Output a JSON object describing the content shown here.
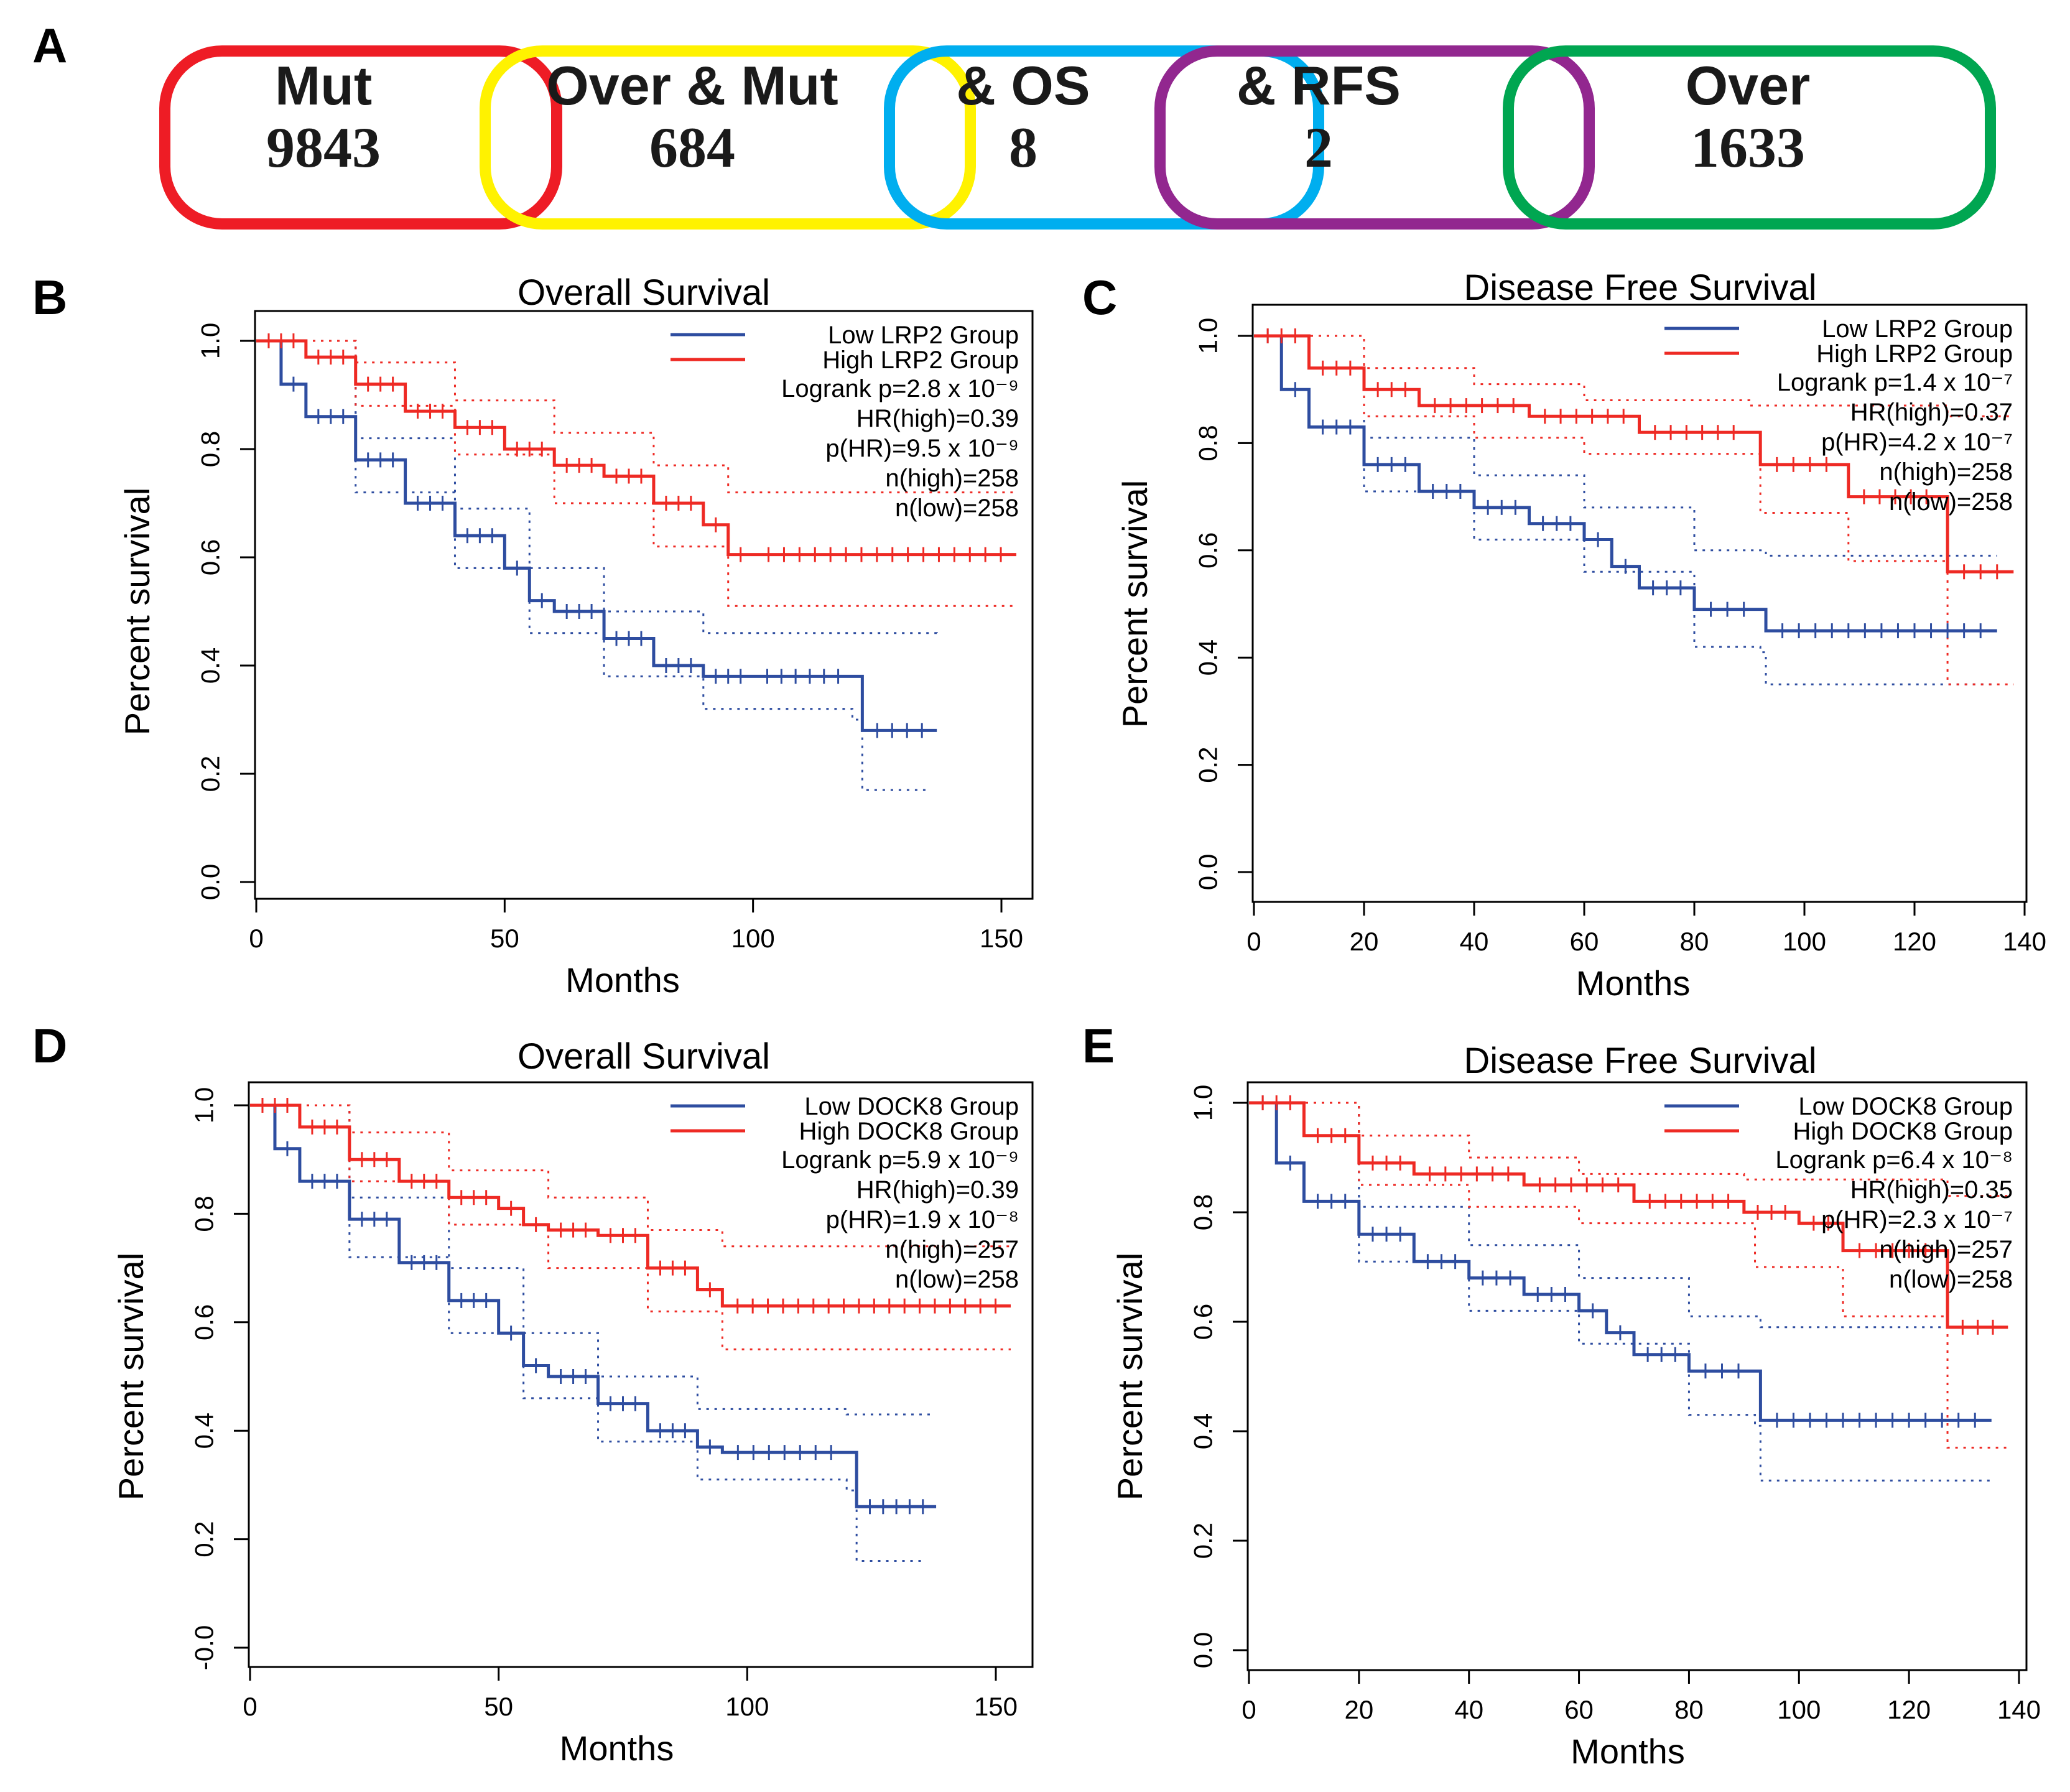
{
  "panel_a": {
    "label": "A",
    "sets": [
      {
        "title": "Mut",
        "count": "9843",
        "color": "#ee1c25"
      },
      {
        "title": "Over & Mut",
        "count": "684",
        "color": "#fff200"
      },
      {
        "title": "& OS",
        "count": "8",
        "color": "#00aeef"
      },
      {
        "title": "& RFS",
        "count": "2",
        "color": "#92278f"
      },
      {
        "title": "Over",
        "count": "1633",
        "color": "#00a651"
      }
    ]
  },
  "colors": {
    "low": "#2e4da0",
    "high": "#ee2a24"
  },
  "chart_data": [
    {
      "panel": "B",
      "type": "line",
      "title": "Overall Survival",
      "xlabel": "Months",
      "ylabel": "Percent survival",
      "xlim": [
        0,
        155
      ],
      "ylim": [
        0,
        1
      ],
      "xticks": [
        0,
        50,
        100,
        150
      ],
      "yticks": [
        "0.0",
        "0.2",
        "0.4",
        "0.6",
        "0.8",
        "1.0"
      ],
      "legend": [
        "Low LRP2 Group",
        "High LRP2 Group"
      ],
      "stats": [
        "Logrank p=2.8 x 10⁻⁹",
        "HR(high)=0.39",
        "p(HR)=9.5 x 10⁻⁹",
        "n(high)=258",
        "n(low)=258"
      ],
      "series": [
        {
          "name": "Low LRP2 Group",
          "x": [
            0,
            5,
            10,
            20,
            30,
            40,
            50,
            55,
            60,
            70,
            80,
            90,
            100,
            120,
            122,
            137
          ],
          "y": [
            1.0,
            0.92,
            0.86,
            0.78,
            0.7,
            0.64,
            0.58,
            0.52,
            0.5,
            0.45,
            0.4,
            0.38,
            0.38,
            0.38,
            0.28,
            0.28
          ]
        },
        {
          "name": "High LRP2 Group",
          "x": [
            0,
            10,
            20,
            30,
            40,
            50,
            60,
            70,
            80,
            90,
            95,
            100,
            153
          ],
          "y": [
            1.0,
            0.97,
            0.92,
            0.87,
            0.84,
            0.8,
            0.77,
            0.75,
            0.7,
            0.66,
            0.605,
            0.605,
            0.605
          ]
        }
      ],
      "ci": [
        {
          "of": "Low LRP2 Group",
          "upper_x": [
            0,
            20,
            40,
            55,
            70,
            90,
            120,
            137
          ],
          "upper_y": [
            1.0,
            0.82,
            0.69,
            0.58,
            0.5,
            0.46,
            0.46,
            0.45
          ],
          "lower_x": [
            0,
            20,
            40,
            55,
            70,
            90,
            120,
            122,
            135
          ],
          "lower_y": [
            1.0,
            0.72,
            0.58,
            0.46,
            0.38,
            0.32,
            0.3,
            0.17,
            0.17
          ]
        },
        {
          "of": "High LRP2 Group",
          "upper_x": [
            0,
            20,
            40,
            60,
            80,
            95,
            153
          ],
          "upper_y": [
            1.0,
            0.96,
            0.89,
            0.83,
            0.77,
            0.72,
            0.72
          ],
          "lower_x": [
            0,
            20,
            40,
            60,
            80,
            95,
            153
          ],
          "lower_y": [
            1.0,
            0.88,
            0.79,
            0.7,
            0.62,
            0.51,
            0.51
          ]
        }
      ]
    },
    {
      "panel": "C",
      "type": "line",
      "title": "Disease Free Survival",
      "xlabel": "Months",
      "ylabel": "Percent survival",
      "xlim": [
        0,
        140
      ],
      "ylim": [
        0,
        1
      ],
      "xticks": [
        0,
        20,
        40,
        60,
        80,
        100,
        120,
        140
      ],
      "yticks": [
        "0.0",
        "0.2",
        "0.4",
        "0.6",
        "0.8",
        "1.0"
      ],
      "legend": [
        "Low LRP2 Group",
        "High LRP2 Group"
      ],
      "stats": [
        "Logrank p=1.4 x 10⁻⁷",
        "HR(high)=0.37",
        "p(HR)=4.2 x 10⁻⁷",
        "n(high)=258",
        "n(low)=258"
      ],
      "series": [
        {
          "name": "Low LRP2 Group",
          "x": [
            0,
            5,
            10,
            20,
            30,
            40,
            50,
            60,
            65,
            70,
            80,
            92,
            93,
            135
          ],
          "y": [
            1.0,
            0.9,
            0.83,
            0.76,
            0.71,
            0.68,
            0.65,
            0.62,
            0.57,
            0.53,
            0.49,
            0.49,
            0.45,
            0.45
          ]
        },
        {
          "name": "High LRP2 Group",
          "x": [
            0,
            10,
            20,
            30,
            50,
            70,
            90,
            92,
            107,
            108,
            125,
            126,
            138
          ],
          "y": [
            1.0,
            0.94,
            0.9,
            0.87,
            0.85,
            0.82,
            0.82,
            0.76,
            0.76,
            0.7,
            0.7,
            0.56,
            0.56
          ]
        }
      ],
      "ci": [
        {
          "of": "Low LRP2 Group",
          "upper_x": [
            0,
            20,
            40,
            60,
            80,
            93,
            135
          ],
          "upper_y": [
            1.0,
            0.81,
            0.74,
            0.68,
            0.6,
            0.59,
            0.59
          ],
          "lower_x": [
            0,
            20,
            40,
            60,
            80,
            92,
            93,
            135
          ],
          "lower_y": [
            1.0,
            0.71,
            0.62,
            0.56,
            0.42,
            0.41,
            0.35,
            0.35
          ]
        },
        {
          "of": "High LRP2 Group",
          "upper_x": [
            0,
            20,
            40,
            60,
            90,
            126,
            138
          ],
          "upper_y": [
            1.0,
            0.94,
            0.91,
            0.88,
            0.87,
            0.85,
            0.85
          ],
          "lower_x": [
            0,
            20,
            40,
            60,
            92,
            108,
            126,
            138
          ],
          "lower_y": [
            1.0,
            0.85,
            0.81,
            0.78,
            0.67,
            0.58,
            0.35,
            0.35
          ]
        }
      ]
    },
    {
      "panel": "D",
      "type": "line",
      "title": "Overall Survival",
      "xlabel": "Months",
      "ylabel": "Percent survival",
      "xlim": [
        0,
        155
      ],
      "ylim": [
        0,
        1
      ],
      "xticks": [
        0,
        50,
        100,
        150
      ],
      "yticks": [
        "-0.0",
        "0.2",
        "0.4",
        "0.6",
        "0.8",
        "1.0"
      ],
      "legend": [
        "Low DOCK8 Group",
        "High DOCK8 Group"
      ],
      "stats": [
        "Logrank p=5.9 x 10⁻⁹",
        "HR(high)=0.39",
        "p(HR)=1.9 x 10⁻⁸",
        "n(high)=257",
        "n(low)=258"
      ],
      "series": [
        {
          "name": "Low DOCK8 Group",
          "x": [
            0,
            5,
            10,
            20,
            30,
            40,
            50,
            55,
            60,
            70,
            80,
            90,
            95,
            120,
            122,
            138
          ],
          "y": [
            1.0,
            0.92,
            0.86,
            0.79,
            0.71,
            0.64,
            0.58,
            0.52,
            0.5,
            0.45,
            0.4,
            0.37,
            0.36,
            0.36,
            0.26,
            0.26
          ]
        },
        {
          "name": "High DOCK8 Group",
          "x": [
            0,
            10,
            20,
            30,
            40,
            50,
            55,
            60,
            70,
            80,
            90,
            95,
            153
          ],
          "y": [
            1.0,
            0.96,
            0.9,
            0.86,
            0.83,
            0.81,
            0.78,
            0.77,
            0.76,
            0.7,
            0.66,
            0.63,
            0.63
          ]
        }
      ],
      "ci": [
        {
          "of": "Low DOCK8 Group",
          "upper_x": [
            0,
            20,
            40,
            55,
            70,
            90,
            120,
            137
          ],
          "upper_y": [
            1.0,
            0.83,
            0.7,
            0.58,
            0.5,
            0.44,
            0.43,
            0.43
          ],
          "lower_x": [
            0,
            20,
            40,
            55,
            70,
            90,
            120,
            122,
            136
          ],
          "lower_y": [
            1.0,
            0.72,
            0.58,
            0.46,
            0.38,
            0.31,
            0.29,
            0.16,
            0.16
          ]
        },
        {
          "of": "High DOCK8 Group",
          "upper_x": [
            0,
            20,
            40,
            60,
            80,
            95,
            153
          ],
          "upper_y": [
            1.0,
            0.95,
            0.88,
            0.83,
            0.77,
            0.74,
            0.74
          ],
          "lower_x": [
            0,
            20,
            40,
            60,
            80,
            95,
            153
          ],
          "lower_y": [
            1.0,
            0.86,
            0.78,
            0.7,
            0.62,
            0.55,
            0.55
          ]
        }
      ]
    },
    {
      "panel": "E",
      "type": "line",
      "title": "Disease Free Survival",
      "xlabel": "Months",
      "ylabel": "Percent survival",
      "xlim": [
        0,
        140
      ],
      "ylim": [
        0,
        1
      ],
      "xticks": [
        0,
        20,
        40,
        60,
        80,
        100,
        120,
        140
      ],
      "yticks": [
        "0.0",
        "0.2",
        "0.4",
        "0.6",
        "0.8",
        "1.0"
      ],
      "legend": [
        "Low DOCK8 Group",
        "High DOCK8 Group"
      ],
      "stats": [
        "Logrank p=6.4 x 10⁻⁸",
        "HR(high)=0.35",
        "p(HR)=2.3 x 10⁻⁷",
        "n(high)=257",
        "n(low)=258"
      ],
      "series": [
        {
          "name": "Low DOCK8 Group",
          "x": [
            0,
            5,
            10,
            20,
            30,
            40,
            50,
            60,
            65,
            70,
            80,
            92,
            93,
            135
          ],
          "y": [
            1.0,
            0.89,
            0.82,
            0.76,
            0.71,
            0.68,
            0.65,
            0.62,
            0.58,
            0.54,
            0.51,
            0.51,
            0.42,
            0.42
          ]
        },
        {
          "name": "High DOCK8 Group",
          "x": [
            0,
            10,
            20,
            30,
            50,
            70,
            90,
            100,
            108,
            126,
            127,
            138
          ],
          "y": [
            1.0,
            0.94,
            0.89,
            0.87,
            0.85,
            0.82,
            0.8,
            0.78,
            0.73,
            0.73,
            0.59,
            0.59
          ]
        }
      ],
      "ci": [
        {
          "of": "Low DOCK8 Group",
          "upper_x": [
            0,
            20,
            40,
            60,
            80,
            93,
            135
          ],
          "upper_y": [
            1.0,
            0.81,
            0.74,
            0.68,
            0.61,
            0.59,
            0.59
          ],
          "lower_x": [
            0,
            20,
            40,
            60,
            80,
            92,
            93,
            135
          ],
          "lower_y": [
            1.0,
            0.71,
            0.62,
            0.56,
            0.43,
            0.41,
            0.31,
            0.31
          ]
        },
        {
          "of": "High DOCK8 Group",
          "upper_x": [
            0,
            20,
            40,
            60,
            90,
            127,
            138
          ],
          "upper_y": [
            1.0,
            0.94,
            0.9,
            0.87,
            0.86,
            0.83,
            0.83
          ],
          "lower_x": [
            0,
            20,
            40,
            60,
            92,
            108,
            127,
            138
          ],
          "lower_y": [
            1.0,
            0.85,
            0.81,
            0.78,
            0.7,
            0.61,
            0.37,
            0.37
          ]
        }
      ]
    }
  ]
}
